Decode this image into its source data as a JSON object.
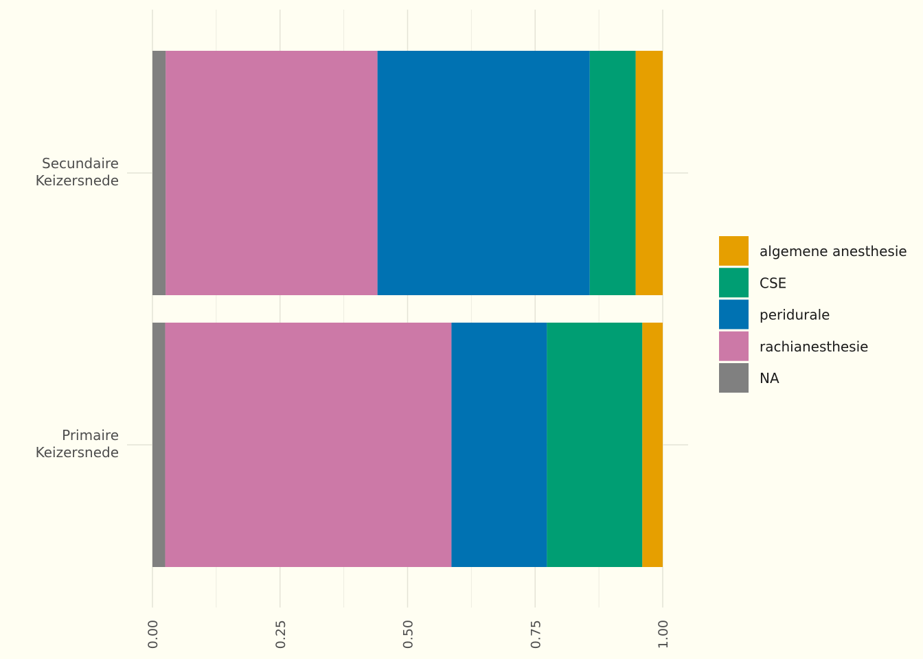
{
  "chart_data": {
    "type": "bar",
    "orientation": "horizontal",
    "stacked": true,
    "title": "",
    "xlabel": "",
    "ylabel": "",
    "xlim": [
      0,
      1
    ],
    "grid": true,
    "legend_position": "right",
    "x_ticks": [
      "0.00",
      "0.25",
      "0.50",
      "0.75",
      "1.00"
    ],
    "categories": [
      [
        "Secundaire",
        "Keizersnede"
      ],
      [
        "Primaire",
        "Keizersnede"
      ]
    ],
    "series": [
      {
        "name": "NA",
        "color": "#808080",
        "values": [
          0.026,
          0.025
        ]
      },
      {
        "name": "rachianesthesie",
        "color": "#CC79A7",
        "values": [
          0.415,
          0.561
        ]
      },
      {
        "name": "peridurale",
        "color": "#0072B2",
        "values": [
          0.416,
          0.187
        ]
      },
      {
        "name": "CSE",
        "color": "#009E73",
        "values": [
          0.09,
          0.187
        ]
      },
      {
        "name": "algemene anesthesie",
        "color": "#E69F00",
        "values": [
          0.053,
          0.04
        ]
      }
    ],
    "legend_order": [
      "algemene anesthesie",
      "CSE",
      "peridurale",
      "rachianesthesie",
      "NA"
    ]
  }
}
